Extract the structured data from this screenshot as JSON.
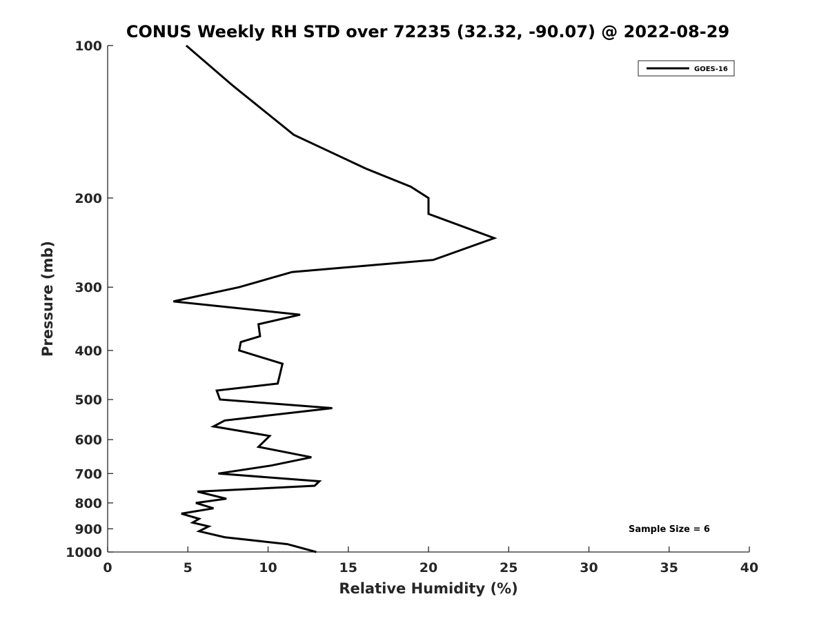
{
  "chart_data": {
    "type": "line",
    "title": "CONUS Weekly RH STD over 72235 (32.32, -90.07) @ 2022-08-29",
    "xlabel": "Relative Humidity (%)",
    "ylabel": "Pressure (mb)",
    "xlim": [
      0,
      40
    ],
    "ylim": [
      1000,
      100
    ],
    "yscale": "log",
    "xticks": [
      0,
      5,
      10,
      15,
      20,
      25,
      30,
      35,
      40
    ],
    "xtick_labels": [
      "0",
      "5",
      "10",
      "15",
      "20",
      "25",
      "30",
      "35",
      "40"
    ],
    "yticks": [
      100,
      200,
      300,
      400,
      500,
      600,
      700,
      800,
      900,
      1000
    ],
    "ytick_labels": [
      "100",
      "200",
      "300",
      "400",
      "500",
      "600",
      "700",
      "800",
      "900",
      "1000"
    ],
    "grid": false,
    "legend": {
      "location": "top-right",
      "entries": [
        "GOES-16"
      ]
    },
    "annotation": "Sample Size = 6",
    "line_color": "#000000",
    "series": [
      {
        "name": "GOES-16",
        "x": [
          4.9,
          7.8,
          11.6,
          16.1,
          18.9,
          20.0,
          20.0,
          20.0,
          24.1,
          20.3,
          11.5,
          8.2,
          4.1,
          12.0,
          9.4,
          9.5,
          8.3,
          8.2,
          10.9,
          10.6,
          6.8,
          7.0,
          14.0,
          7.3,
          6.6,
          10.1,
          9.4,
          12.7,
          10.2,
          6.9,
          13.2,
          12.9,
          5.6,
          7.4,
          5.5,
          6.6,
          4.6,
          5.7,
          5.3,
          6.3,
          5.7,
          7.3,
          11.2,
          13.0
        ],
        "y": [
          100,
          120,
          150,
          175,
          190,
          200,
          210,
          215,
          240,
          265,
          280,
          300,
          320,
          340,
          355,
          375,
          385,
          400,
          425,
          465,
          480,
          500,
          520,
          550,
          565,
          590,
          620,
          650,
          675,
          700,
          725,
          740,
          760,
          785,
          800,
          820,
          840,
          860,
          875,
          890,
          910,
          935,
          965,
          1000
        ]
      }
    ]
  }
}
